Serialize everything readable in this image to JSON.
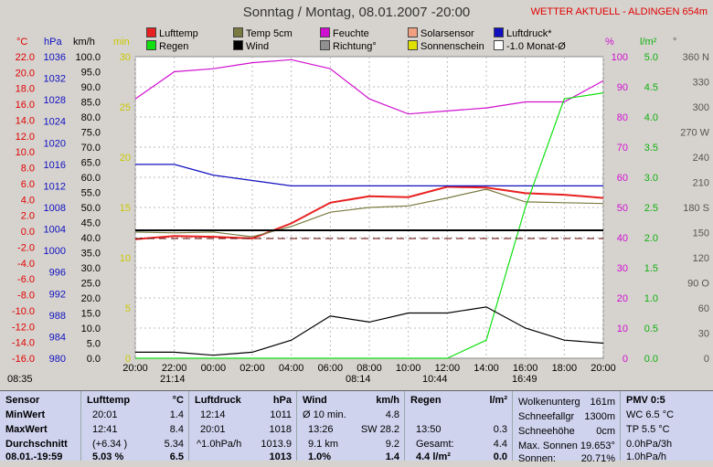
{
  "title": "Sonntag / Montag, 08.01.2007  -20:00",
  "station": "WETTER AKTUELL - ALDINGEN 654m",
  "units": {
    "celsius": "°C",
    "hpa": "hPa",
    "kmh": "km/h",
    "min": "min",
    "percent": "%",
    "lm2": "l/m²",
    "deg": "°"
  },
  "legend": [
    {
      "label": "Lufttemp",
      "color": "#e82020"
    },
    {
      "label": "Temp 5cm",
      "color": "#7a7a40"
    },
    {
      "label": "Feuchte",
      "color": "#d010d0"
    },
    {
      "label": "Solarsensor",
      "color": "#f0a080"
    },
    {
      "label": "Luftdruck*",
      "color": "#1010c0"
    },
    {
      "label": "Regen",
      "color": "#10e010"
    },
    {
      "label": "Wind",
      "color": "#000000"
    },
    {
      "label": "Richtung°",
      "color": "#909090"
    },
    {
      "label": "Sonnenschein",
      "color": "#e0e000"
    },
    {
      "label": "-1.0 Monat-Ø",
      "color": "#ffffff"
    }
  ],
  "axes": {
    "celsius": [
      "22.0",
      "20.0",
      "18.0",
      "16.0",
      "14.0",
      "12.0",
      "10.0",
      "8.0",
      "6.0",
      "4.0",
      "2.0",
      "0.0",
      "-2.0",
      "-4.0",
      "-6.0",
      "-8.0",
      "-10.0",
      "-12.0",
      "-14.0",
      "-16.0"
    ],
    "hpa": [
      "1036",
      "1032",
      "1028",
      "1024",
      "1020",
      "1016",
      "1012",
      "1008",
      "1004",
      "1000",
      "996",
      "992",
      "988",
      "984",
      "980"
    ],
    "kmh": [
      "100.0",
      "95.0",
      "90.0",
      "85.0",
      "80.0",
      "75.0",
      "70.0",
      "65.0",
      "60.0",
      "55.0",
      "50.0",
      "45.0",
      "40.0",
      "35.0",
      "30.0",
      "25.0",
      "20.0",
      "15.0",
      "10.0",
      "5.0",
      "0.0"
    ],
    "min": [
      "30",
      "25",
      "20",
      "15",
      "10",
      "5",
      "0"
    ],
    "percent": [
      "100",
      "90",
      "80",
      "70",
      "60",
      "50",
      "40",
      "30",
      "20",
      "10",
      "0"
    ],
    "lm2": [
      "5.0",
      "4.5",
      "4.0",
      "3.5",
      "3.0",
      "2.5",
      "2.0",
      "1.5",
      "1.0",
      "0.5",
      "0.0"
    ],
    "deg": [
      "360 N",
      "330",
      "300",
      "270 W",
      "240",
      "210",
      "180 S",
      "150",
      "120",
      "90 O",
      "60",
      "30",
      "0"
    ]
  },
  "xaxis": {
    "ticks": [
      "20:00",
      "22:00",
      "00:00",
      "02:00",
      "04:00",
      "06:00",
      "08:00",
      "10:00",
      "12:00",
      "14:00",
      "16:00",
      "18:00",
      "20:00"
    ]
  },
  "markers": [
    {
      "label": "08:35"
    },
    {
      "label": "21:14"
    },
    {
      "label": "08:14"
    },
    {
      "label": "10:44"
    },
    {
      "label": "16:49"
    }
  ],
  "chart_data": {
    "type": "line",
    "x_hours": [
      0,
      2,
      4,
      6,
      8,
      10,
      12,
      14,
      16,
      18,
      20,
      22,
      24
    ],
    "series": [
      {
        "name": "Lufttemp",
        "unit": "°C",
        "values": [
          -1.0,
          -0.6,
          -0.7,
          -0.9,
          1.0,
          3.6,
          4.4,
          4.3,
          5.6,
          5.5,
          4.8,
          4.6,
          4.2
        ]
      },
      {
        "name": "Temp 5cm",
        "unit": "°C",
        "values": [
          -0.1,
          -0.2,
          -0.1,
          -0.7,
          0.6,
          2.4,
          3.0,
          3.2,
          4.2,
          5.3,
          3.7,
          3.6,
          3.5
        ]
      },
      {
        "name": "Feuchte",
        "unit": "%",
        "values": [
          86,
          95,
          96,
          98,
          99,
          96,
          86,
          81,
          82,
          83,
          85,
          85,
          92
        ]
      },
      {
        "name": "Luftdruck*",
        "unit": "hPa",
        "values": [
          1016,
          1016,
          1014,
          1013,
          1012,
          1012,
          1012,
          1012,
          1012,
          1012,
          1012,
          1012,
          1012
        ]
      },
      {
        "name": "Regen",
        "unit": "l/m²",
        "values": [
          0,
          0,
          0,
          0,
          0,
          0,
          0,
          0,
          0,
          0.3,
          2.5,
          4.3,
          4.4
        ]
      },
      {
        "name": "Wind",
        "unit": "km/h",
        "values": [
          2,
          2,
          1,
          2,
          6,
          14,
          12,
          15,
          15,
          17,
          10,
          6,
          5
        ]
      }
    ]
  },
  "table": {
    "sensor": {
      "header": "Sensor",
      "rows": [
        "MinWert",
        "MaxWert",
        "Durchschnitt",
        "08.01.-19:59"
      ]
    },
    "lufttemp": {
      "header": "Lufttemp",
      "unit": "°C",
      "rows": [
        [
          "20:01",
          "1.4"
        ],
        [
          "12:41",
          "8.4"
        ],
        [
          "(+6.34 )",
          "5.34"
        ],
        [
          "5.03 %",
          "6.5"
        ]
      ]
    },
    "luftdruck": {
      "header": "Luftdruck",
      "unit": "hPa",
      "rows": [
        [
          "12:14",
          "1011"
        ],
        [
          "20:01",
          "1018"
        ],
        [
          "^1.0hPa/h",
          "1013.9"
        ],
        [
          "",
          "1013"
        ]
      ]
    },
    "wind": {
      "header": "Wind",
      "unit": "km/h",
      "rows": [
        [
          "Ø 10 min.",
          "4.8"
        ],
        [
          "13:26",
          "SW 28.2"
        ],
        [
          "9.1 km",
          "9.2"
        ],
        [
          "1.0% ",
          "1.4"
        ]
      ]
    },
    "regen": {
      "header": "Regen",
      "unit": "l/m²",
      "rows": [
        [
          "",
          ""
        ],
        [
          "13:50",
          "0.3"
        ],
        [
          "Gesamt:",
          "4.4"
        ],
        [
          "4.4 l/m²",
          "0.0"
        ]
      ]
    },
    "wolken": {
      "rows": [
        [
          "Wolkenunterg",
          "161m"
        ],
        [
          "Schneefallgr",
          "1300m"
        ],
        [
          "Schneehöhe",
          "0cm"
        ],
        [
          "Max. Sonnen 19.653°",
          ""
        ],
        [
          "Sonnen:",
          "20.71%"
        ]
      ]
    },
    "pmv": {
      "header": "PMV 0:5",
      "rows": [
        "WC 6.5 °C",
        "TP 5.5 °C",
        "0.0hPa/3h",
        "1.0hPa/h"
      ]
    }
  }
}
